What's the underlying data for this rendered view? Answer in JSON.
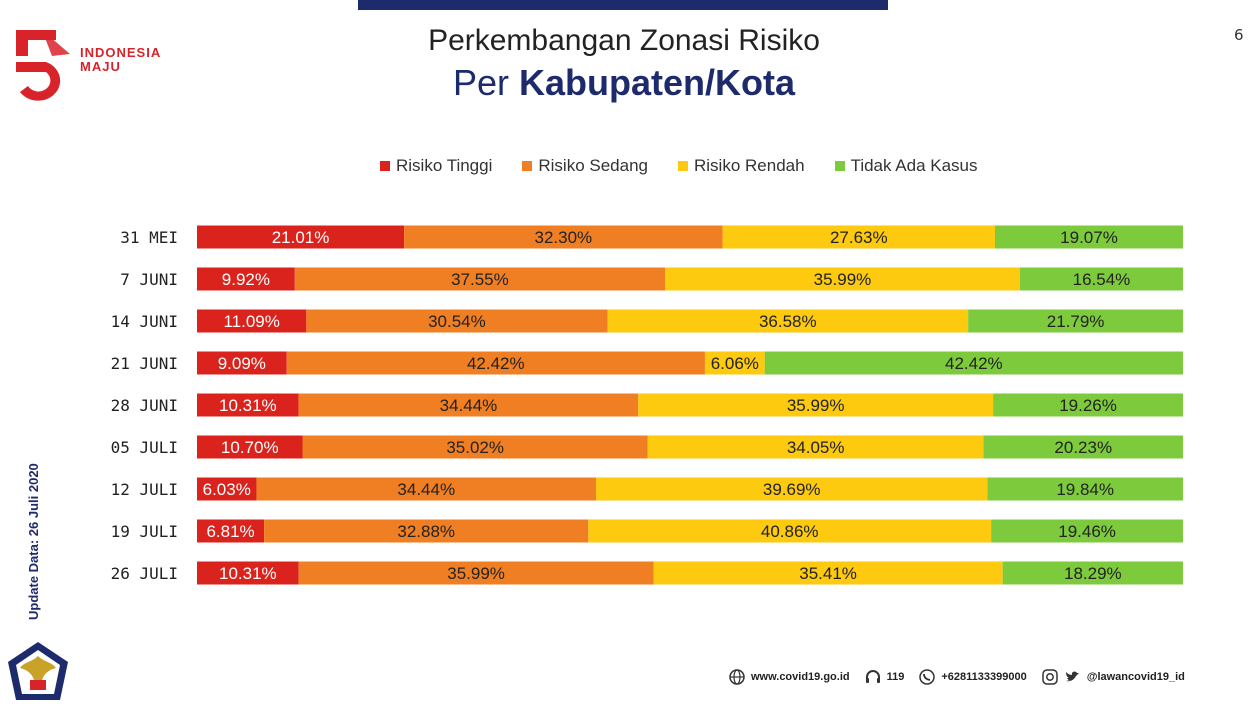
{
  "page_number": "6",
  "logo": {
    "text_line1": "INDONESIA",
    "text_line2": "MAJU",
    "number": "75"
  },
  "title_line1": "Perkembangan Zonasi Risiko",
  "title_line2_prefix": "Per ",
  "title_line2_bold": "Kabupaten/Kota",
  "update_note": "Update Data: 26 Juli 2020",
  "colors": {
    "tinggi": "#d9231c",
    "sedang": "#f07f23",
    "rendah": "#fdca0f",
    "tidak_ada": "#7dcb3c"
  },
  "footer": {
    "website": "www.covid19.go.id",
    "hotline": "119",
    "whatsapp": "+6281133399000",
    "social": "@lawancovid19_id"
  },
  "chart_data": {
    "type": "bar",
    "orientation": "horizontal",
    "stacked": true,
    "normalized": true,
    "legend_position": "top",
    "grid": false,
    "categories": [
      "31 MEI",
      "7 JUNI",
      "14 JUNI",
      "21 JUNI",
      "28 JUNI",
      "05 JULI",
      "12 JULI",
      "19 JULI",
      "26 JULI"
    ],
    "series": [
      {
        "name": "Risiko Tinggi",
        "color": "#d9231c",
        "values": [
          21.01,
          9.92,
          11.09,
          9.09,
          10.31,
          10.7,
          6.03,
          6.81,
          10.31
        ],
        "labels": [
          "21.01%",
          "9.92%",
          "11.09%",
          "9.09%",
          "10.31%",
          "10.70%",
          "6.03%",
          "6.81%",
          "10.31%"
        ]
      },
      {
        "name": "Risiko Sedang",
        "color": "#f07f23",
        "values": [
          32.3,
          37.55,
          30.54,
          42.42,
          34.44,
          35.02,
          34.44,
          32.88,
          35.99
        ],
        "labels": [
          "32.30%",
          "37.55%",
          "30.54%",
          "42.42%",
          "34.44%",
          "35.02%",
          "34.44%",
          "32.88%",
          "35.99%"
        ]
      },
      {
        "name": "Risiko Rendah",
        "color": "#fdca0f",
        "values": [
          27.63,
          35.99,
          36.58,
          6.06,
          35.99,
          34.05,
          39.69,
          40.86,
          35.41
        ],
        "labels": [
          "27.63%",
          "35.99%",
          "36.58%",
          "6.06%",
          "35.99%",
          "34.05%",
          "39.69%",
          "40.86%",
          "35.41%"
        ]
      },
      {
        "name": "Tidak Ada Kasus",
        "color": "#7dcb3c",
        "values": [
          19.07,
          16.54,
          21.79,
          42.42,
          19.26,
          20.23,
          19.84,
          19.46,
          18.29
        ],
        "labels": [
          "19.07%",
          "16.54%",
          "21.79%",
          "42.42%",
          "19.26%",
          "20.23%",
          "19.84%",
          "19.46%",
          "18.29%"
        ]
      }
    ]
  }
}
